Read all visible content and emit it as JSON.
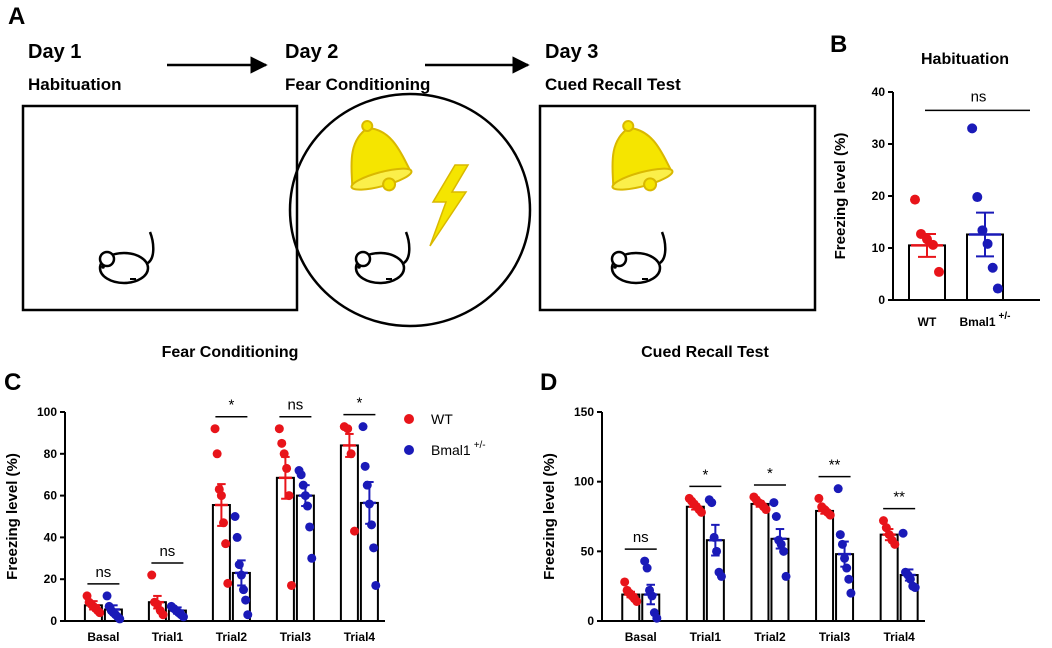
{
  "diagram": {
    "panel": "A",
    "steps": [
      {
        "day": "Day 1",
        "label": "Habituation"
      },
      {
        "day": "Day 2",
        "label": "Fear Conditioning"
      },
      {
        "day": "Day 3",
        "label": "Cued Recall Test"
      }
    ]
  },
  "chart_data": [
    {
      "type": "bar",
      "panel": "B",
      "title": "Habituation",
      "y_label": "Freezing level (%)",
      "ylim": [
        0,
        40
      ],
      "yticks": [
        0,
        10,
        20,
        30,
        40
      ],
      "significance": "ns",
      "series": [
        {
          "name": "WT",
          "color": "#e8141a",
          "values": [
            10.5
          ],
          "errors": [
            2.2
          ],
          "points": [
            [
              19.3,
              12.7,
              11.7,
              10.6,
              5.4
            ]
          ]
        },
        {
          "name": "Bmal1",
          "superscript": "+/-",
          "color": "#1a1ab8",
          "values": [
            12.6
          ],
          "errors": [
            4.2
          ],
          "points": [
            [
              33,
              19.8,
              13.4,
              10.8,
              6.2,
              2.2
            ]
          ]
        }
      ]
    },
    {
      "type": "grouped_bar",
      "panel": "C",
      "title": "Fear Conditioning",
      "y_label": "Freezing level (%)",
      "categories": [
        "Basal",
        "Trial1",
        "Trial2",
        "Trial3",
        "Trial4"
      ],
      "ylim": [
        0,
        100
      ],
      "yticks": [
        0,
        20,
        40,
        60,
        80,
        100
      ],
      "legend": "right",
      "significance": [
        "ns",
        "ns",
        "*",
        "ns",
        "*"
      ],
      "series": [
        {
          "name": "WT",
          "color": "#e8141a",
          "values": [
            7.5,
            9,
            55.5,
            68.5,
            84
          ],
          "errors": [
            2,
            3,
            10,
            10,
            5.5
          ],
          "points": [
            [
              12,
              9,
              8,
              7,
              6,
              5,
              4
            ],
            [
              22,
              9,
              8,
              5,
              3
            ],
            [
              92,
              80,
              63,
              60,
              47,
              37,
              18
            ],
            [
              92,
              85,
              80,
              73,
              60,
              17
            ],
            [
              93,
              92,
              80,
              43
            ]
          ]
        },
        {
          "name": "Bmal1",
          "superscript": "+/-",
          "color": "#1a1ab8",
          "values": [
            5.5,
            5,
            23,
            60,
            56.5
          ],
          "errors": [
            2,
            1.5,
            6,
            5,
            10
          ],
          "points": [
            [
              12,
              7,
              5,
              4,
              3,
              2,
              1
            ],
            [
              7,
              6,
              5,
              4,
              3,
              2
            ],
            [
              50,
              40,
              27,
              22,
              15,
              10,
              3
            ],
            [
              72,
              70,
              65,
              60,
              55,
              45,
              30
            ],
            [
              93,
              74,
              65,
              56,
              46,
              35,
              17
            ]
          ]
        }
      ]
    },
    {
      "type": "grouped_bar",
      "panel": "D",
      "title": "Cued Recall Test",
      "y_label": "Freezing level (%)",
      "categories": [
        "Basal",
        "Trial1",
        "Trial2",
        "Trial3",
        "Trial4"
      ],
      "ylim": [
        0,
        150
      ],
      "yticks": [
        0,
        50,
        100,
        150
      ],
      "significance": [
        "ns",
        "*",
        "*",
        "**",
        "**"
      ],
      "series": [
        {
          "name": "WT",
          "color": "#e8141a",
          "values": [
            19,
            82,
            84,
            79,
            62
          ],
          "errors": [
            2,
            2,
            2,
            2,
            4
          ],
          "points": [
            [
              28,
              22,
              20,
              18,
              16,
              14
            ],
            [
              88,
              86,
              84,
              82,
              80,
              78
            ],
            [
              89,
              87,
              85,
              84,
              82,
              80
            ],
            [
              88,
              82,
              80,
              78,
              76
            ],
            [
              72,
              67,
              62,
              58,
              55
            ]
          ]
        },
        {
          "name": "Bmal1",
          "superscript": "+/-",
          "color": "#1a1ab8",
          "values": [
            19,
            58,
            59,
            48,
            33
          ],
          "errors": [
            7,
            11,
            7,
            9,
            4
          ],
          "points": [
            [
              43,
              38,
              22,
              18,
              6,
              2
            ],
            [
              87,
              85,
              60,
              50,
              35,
              32
            ],
            [
              85,
              75,
              58,
              55,
              50,
              32
            ],
            [
              95,
              62,
              55,
              45,
              38,
              30,
              20
            ],
            [
              63,
              35,
              33,
              30,
              25,
              24
            ]
          ]
        }
      ]
    }
  ]
}
